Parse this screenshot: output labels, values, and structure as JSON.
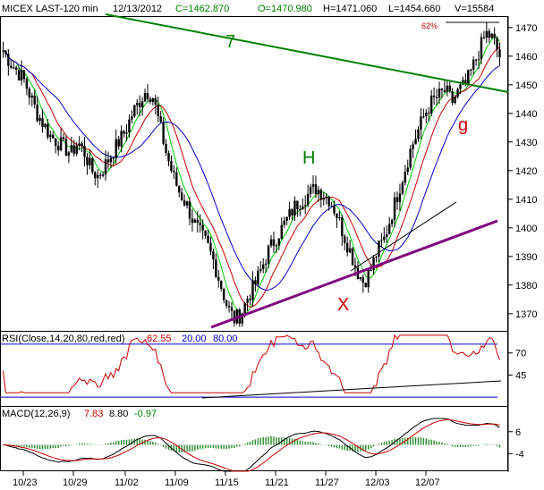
{
  "header": {
    "symbol": "MICEX LAST-120 min",
    "date": "12/13/2012",
    "close": "C=1462.870",
    "open": "O=1470.980",
    "high": "H=1471.060",
    "low": "L=1454.660",
    "volume": "V=15584"
  },
  "annotations": {
    "trend_label": "7",
    "h_label": "H",
    "x_label": "X",
    "g_label": "g",
    "pct_label": "62%"
  },
  "rsi": {
    "title": "RSI(Close,14,20,80,red,red)",
    "value": "62.55",
    "lower": "20.00",
    "upper": "80.00",
    "tick_labels": [
      "70",
      "45"
    ],
    "ticks": [
      70,
      45
    ]
  },
  "macd": {
    "title": "MACD(12,26,9)",
    "macd_value": "7.83",
    "signal_value": "8.80",
    "hist_value": "-0.97",
    "tick_labels": [
      "6",
      "-4"
    ],
    "ticks": [
      6,
      -4
    ]
  },
  "colors": {
    "price": "#000000",
    "ma_green": "#00cc00",
    "ma_red": "#cc0000",
    "ma_blue": "#0000cc",
    "trend7": "#008000",
    "support": "#800080",
    "rsi_line": "#cc0000",
    "rsi_band": "#0000cc",
    "macd_hist": "#2a8a2a",
    "macd_signal": "#cc0000",
    "header_c": "#008000",
    "header_o": "#008000"
  },
  "chart_data": {
    "type": "candlestick",
    "title": "MICEX LAST-120 min",
    "x_tick_labels": [
      "10/23",
      "10/29",
      "11/02",
      "11/09",
      "11/15",
      "11/21",
      "11/27",
      "12/03",
      "12/07"
    ],
    "y_tick_labels": [
      "1470",
      "1460",
      "1450",
      "1440",
      "1430",
      "1420",
      "1410",
      "1400",
      "1390",
      "1380",
      "1370"
    ],
    "y_ticks": [
      1470,
      1460,
      1450,
      1440,
      1430,
      1420,
      1410,
      1400,
      1390,
      1380,
      1370
    ],
    "ylim": [
      1364,
      1474
    ],
    "close_series": [
      1462,
      1458,
      1455,
      1452,
      1446,
      1440,
      1436,
      1432,
      1430,
      1428,
      1426,
      1430,
      1426,
      1420,
      1418,
      1422,
      1426,
      1430,
      1434,
      1440,
      1444,
      1448,
      1446,
      1436,
      1426,
      1418,
      1412,
      1408,
      1402,
      1398,
      1394,
      1388,
      1380,
      1372,
      1368,
      1370,
      1376,
      1380,
      1386,
      1392,
      1396,
      1400,
      1404,
      1408,
      1410,
      1412,
      1414,
      1412,
      1410,
      1405,
      1398,
      1392,
      1385,
      1381,
      1385,
      1392,
      1396,
      1404,
      1412,
      1420,
      1428,
      1434,
      1440,
      1444,
      1446,
      1448,
      1444,
      1448,
      1450,
      1456,
      1462,
      1468,
      1466,
      1460
    ]
  }
}
